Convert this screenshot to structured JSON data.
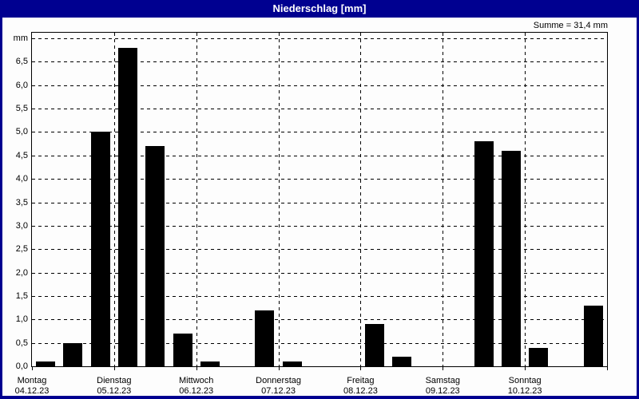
{
  "window": {
    "title": "Niederschlag [mm]"
  },
  "summary": {
    "label": "Summe = 31,4 mm",
    "value_mm": 31.4
  },
  "colors": {
    "titlebar": "#000090",
    "bar": "#000000",
    "plot_background": "#fdfdfd",
    "text": "#000000"
  },
  "chart_data": {
    "type": "bar",
    "title": "Niederschlag [mm]",
    "xlabel": "",
    "ylabel": "mm",
    "ylim": [
      0,
      7.12
    ],
    "ytick_step": 0.5,
    "grid": true,
    "legend": "none",
    "slots_per_day": 3,
    "y_ticks": [
      {
        "v": 0.0,
        "label": "0,0"
      },
      {
        "v": 0.5,
        "label": "0,5"
      },
      {
        "v": 1.0,
        "label": "1,0"
      },
      {
        "v": 1.5,
        "label": "1,5"
      },
      {
        "v": 2.0,
        "label": "2,0"
      },
      {
        "v": 2.5,
        "label": "2,5"
      },
      {
        "v": 3.0,
        "label": "3,0"
      },
      {
        "v": 3.5,
        "label": "3,5"
      },
      {
        "v": 4.0,
        "label": "4,0"
      },
      {
        "v": 4.5,
        "label": "4,5"
      },
      {
        "v": 5.0,
        "label": "5,0"
      },
      {
        "v": 5.5,
        "label": "5,5"
      },
      {
        "v": 6.0,
        "label": "6,0"
      },
      {
        "v": 6.5,
        "label": "6,5"
      },
      {
        "v": 7.0,
        "label": "mm"
      }
    ],
    "days": [
      {
        "name": "Montag",
        "date": "04.12.23",
        "values": [
          0.1,
          0.5,
          5.0
        ]
      },
      {
        "name": "Dienstag",
        "date": "05.12.23",
        "values": [
          6.8,
          4.7,
          0.7
        ]
      },
      {
        "name": "Mittwoch",
        "date": "06.12.23",
        "values": [
          0.1,
          0,
          1.2
        ]
      },
      {
        "name": "Donnerstag",
        "date": "07.12.23",
        "values": [
          0.1,
          0,
          0
        ]
      },
      {
        "name": "Freitag",
        "date": "08.12.23",
        "values": [
          0.9,
          0.2,
          0
        ]
      },
      {
        "name": "Samstag",
        "date": "09.12.23",
        "values": [
          0,
          4.8,
          4.6
        ]
      },
      {
        "name": "Sonntag",
        "date": "10.12.23",
        "values": [
          0.4,
          0,
          1.3
        ]
      }
    ]
  }
}
